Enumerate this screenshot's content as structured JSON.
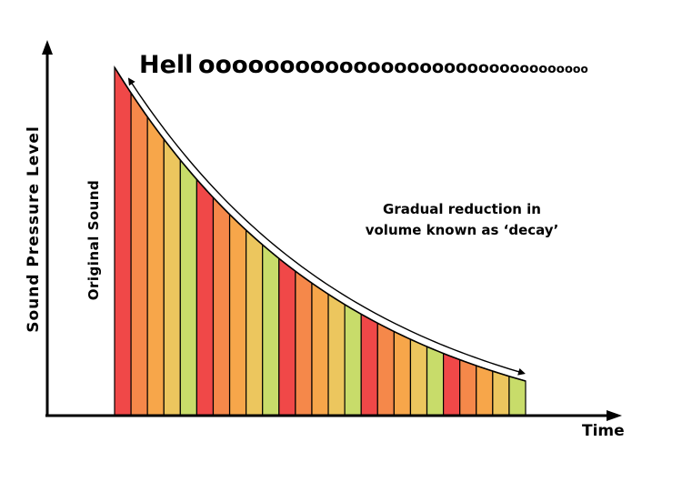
{
  "diagram": {
    "title_prefix": "Hell",
    "title_tail_chars": [
      "o",
      "o",
      "o",
      "o",
      "o",
      "o",
      "o",
      "o",
      "o",
      "o",
      "o",
      "o",
      "o",
      "o",
      "o",
      "o",
      "o",
      "o",
      "o",
      "o",
      "o",
      "o",
      "o",
      "o",
      "o",
      "o",
      "o",
      "o",
      "o",
      "o",
      "o",
      "o"
    ],
    "y_axis_label": "Sound Pressure Level",
    "x_axis_label": "Time",
    "original_sound_label": "Original Sound",
    "decay_label_line1": "Gradual reduction in",
    "decay_label_line2": "volume known as ‘decay’",
    "colors": {
      "red": "#f04848",
      "orange": "#f5884a",
      "light_orange": "#f7a64a",
      "yellow": "#ecc65e",
      "green": "#c8dc6a"
    },
    "bar_color_cycle": [
      "red",
      "orange",
      "light_orange",
      "yellow",
      "green"
    ],
    "bar_count": 25
  }
}
